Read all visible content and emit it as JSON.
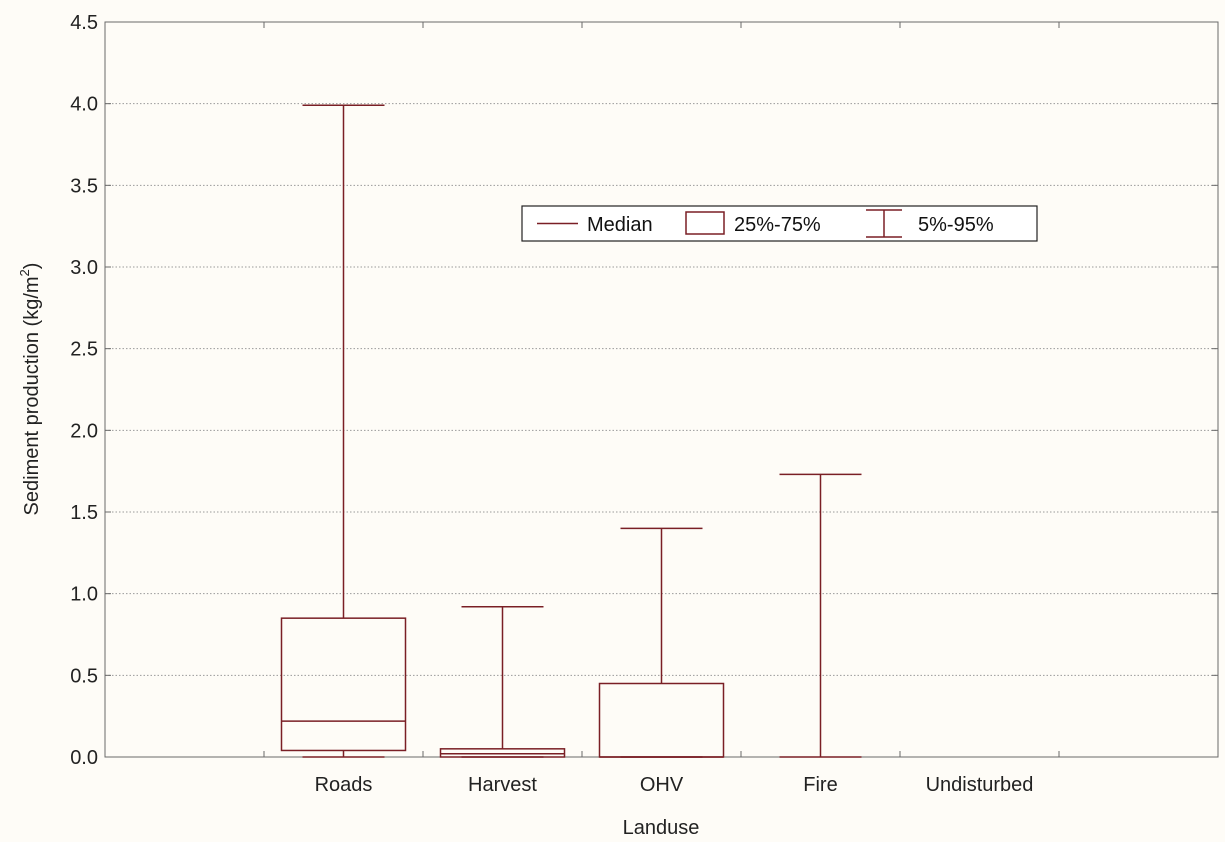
{
  "chart_data": {
    "type": "box",
    "title": "",
    "xlabel": "Landuse",
    "ylabel": "Sediment production (kg/m",
    "ylabel_sup": "2",
    "ylabel_close": ")",
    "ylim": [
      0,
      4.5
    ],
    "yticks": [
      "0.0",
      "0.5",
      "1.0",
      "1.5",
      "2.0",
      "2.5",
      "3.0",
      "3.5",
      "4.0",
      "4.5"
    ],
    "grid": true,
    "legend_placement": "top-center",
    "legend": {
      "median": "Median",
      "box": "25%-75%",
      "whisker": "5%-95%"
    },
    "colors": {
      "series": "#7a1f25",
      "frame": "#6a6a6a",
      "grid": "#9a9a9a"
    },
    "categories": [
      "Roads",
      "Harvest",
      "OHV",
      "Fire",
      "Undisturbed"
    ],
    "series": [
      {
        "q5": 0.0,
        "q25": 0.04,
        "median": 0.22,
        "q75": 0.85,
        "q95": 3.99
      },
      {
        "q5": 0.0,
        "q25": 0.0,
        "median": 0.02,
        "q75": 0.05,
        "q95": 0.92
      },
      {
        "q5": 0.0,
        "q25": 0.0,
        "median": 0.0,
        "q75": 0.45,
        "q95": 1.4
      },
      {
        "q5": 0.0,
        "q25": 0.0,
        "median": 0.0,
        "q75": 0.0,
        "q95": 1.73
      },
      {
        "q5": 0.0,
        "q25": 0.0,
        "median": 0.0,
        "q75": 0.0,
        "q95": 0.0
      }
    ]
  }
}
